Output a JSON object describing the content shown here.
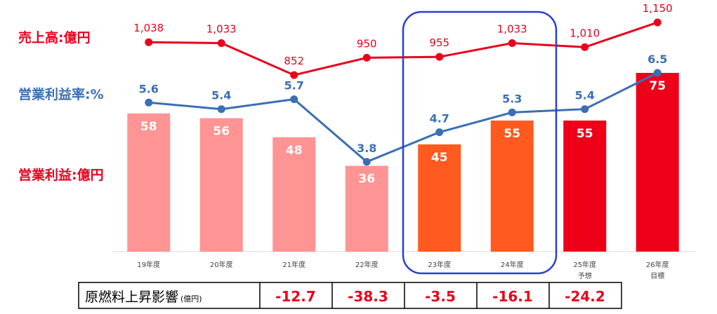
{
  "chart_data": {
    "type": "bar",
    "categories": [
      "19年度",
      "20年度",
      "21年度",
      "22年度",
      "23年度",
      "24年度",
      "25年度",
      "26年度"
    ],
    "category_sublabels": [
      "",
      "",
      "",
      "",
      "",
      "",
      "予想",
      "目標"
    ],
    "operating_profit": [
      58,
      56,
      48,
      36,
      45,
      55,
      55,
      75
    ],
    "sales": [
      1038,
      1033,
      852,
      950,
      955,
      1033,
      1010,
      1150
    ],
    "sales_labels": [
      "1,038",
      "1,033",
      "852",
      "950",
      "955",
      "1,033",
      "1,010",
      "1,150"
    ],
    "operating_margin": [
      5.6,
      5.4,
      5.7,
      3.8,
      4.7,
      5.3,
      5.4,
      6.5
    ],
    "legend": {
      "sales": "売上高:億円",
      "margin": "営業利益率:%",
      "profit": "営業利益:億円"
    },
    "highlight_categories": [
      "23年度",
      "24年度"
    ]
  },
  "table": {
    "header_main": "原燃料上昇影響",
    "header_unit": "(億円)",
    "values": [
      "-12.7",
      "-38.3",
      "-3.5",
      "-16.1",
      "-24.2"
    ]
  },
  "colors": {
    "bar_past": "#ff9494",
    "bar_current": "#ff5a1f",
    "bar_future": "#ee0018",
    "sales_line": "#e8001c",
    "margin_line": "#3a6fb5",
    "highlight_box": "#2b3ed6"
  }
}
